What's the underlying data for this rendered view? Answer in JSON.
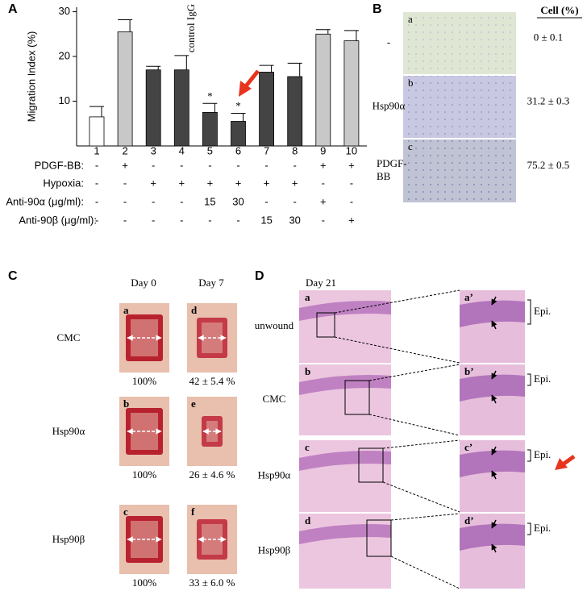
{
  "chart_data": {
    "type": "bar",
    "panel_label": "A",
    "ylabel": "Migration Index (%)",
    "categories": [
      "1",
      "2",
      "3",
      "4",
      "5",
      "6",
      "7",
      "8",
      "9",
      "10"
    ],
    "values": [
      6.5,
      25.5,
      17,
      17,
      7.5,
      5.5,
      16.5,
      15.5,
      25,
      23.5
    ],
    "errors": [
      2.3,
      2.7,
      0.8,
      3.2,
      2,
      1.8,
      1.5,
      3,
      1,
      2.3
    ],
    "colors": [
      "#ffffff",
      "#c8c8c8",
      "#444444",
      "#444444",
      "#444444",
      "#444444",
      "#444444",
      "#444444",
      "#c8c8c8",
      "#c8c8c8"
    ],
    "ylim": [
      0,
      31
    ],
    "yticks": [
      10,
      20,
      30
    ],
    "annotation": "control IgG",
    "significance": "*",
    "treatments": [
      {
        "label": "PDGF-BB:",
        "cells": [
          "-",
          "+",
          "-",
          "-",
          "-",
          "-",
          "-",
          "-",
          "+",
          "+"
        ]
      },
      {
        "label": "Hypoxia:",
        "cells": [
          "-",
          "-",
          "+",
          "+",
          "+",
          "+",
          "+",
          "+",
          "-",
          "-"
        ]
      },
      {
        "label": "Anti-90α (μg/ml):",
        "cells": [
          "-",
          "-",
          "-",
          "-",
          "15",
          "30",
          "-",
          "-",
          "+",
          "-"
        ]
      },
      {
        "label": "Anti-90β (μg/ml):",
        "cells": [
          "-",
          "-",
          "-",
          "-",
          "-",
          "-",
          "15",
          "30",
          "-",
          "+"
        ]
      }
    ]
  },
  "panel_b": {
    "label": "B",
    "header": "Cell (%)",
    "rows": [
      {
        "letter": "a",
        "label": [
          "-"
        ],
        "value": "0 ± 0.1"
      },
      {
        "letter": "b",
        "label": [
          "Hsp90α"
        ],
        "value": "31.2 ± 0.3"
      },
      {
        "letter": "c",
        "label": [
          "PDGF-",
          "BB"
        ],
        "value": "75.2 ± 0.5"
      }
    ]
  },
  "panel_c": {
    "label": "C",
    "columns": [
      "Day 0",
      "Day 7"
    ],
    "rows": [
      {
        "label": "CMC",
        "images": [
          {
            "letter": "a",
            "caption": "100%"
          },
          {
            "letter": "d",
            "caption": "42 ± 5.4 %"
          }
        ]
      },
      {
        "label": "Hsp90α",
        "images": [
          {
            "letter": "b",
            "caption": "100%"
          },
          {
            "letter": "e",
            "caption": "26 ± 4.6 %"
          }
        ]
      },
      {
        "label": "Hsp90β",
        "images": [
          {
            "letter": "c",
            "caption": "100%"
          },
          {
            "letter": "f",
            "caption": "33 ± 6.0 %"
          }
        ]
      }
    ]
  },
  "panel_d": {
    "label": "D",
    "column": "Day 21",
    "rows": [
      {
        "label": "unwound",
        "letter": "a",
        "zoom_letter": "a’",
        "epi": "Epi."
      },
      {
        "label": "CMC",
        "letter": "b",
        "zoom_letter": "b’",
        "epi": "Epi."
      },
      {
        "label": "Hsp90α",
        "letter": "c",
        "zoom_letter": "c’",
        "epi": "Epi."
      },
      {
        "label": "Hsp90β",
        "letter": "d",
        "zoom_letter": "d’",
        "epi": "Epi."
      }
    ]
  }
}
